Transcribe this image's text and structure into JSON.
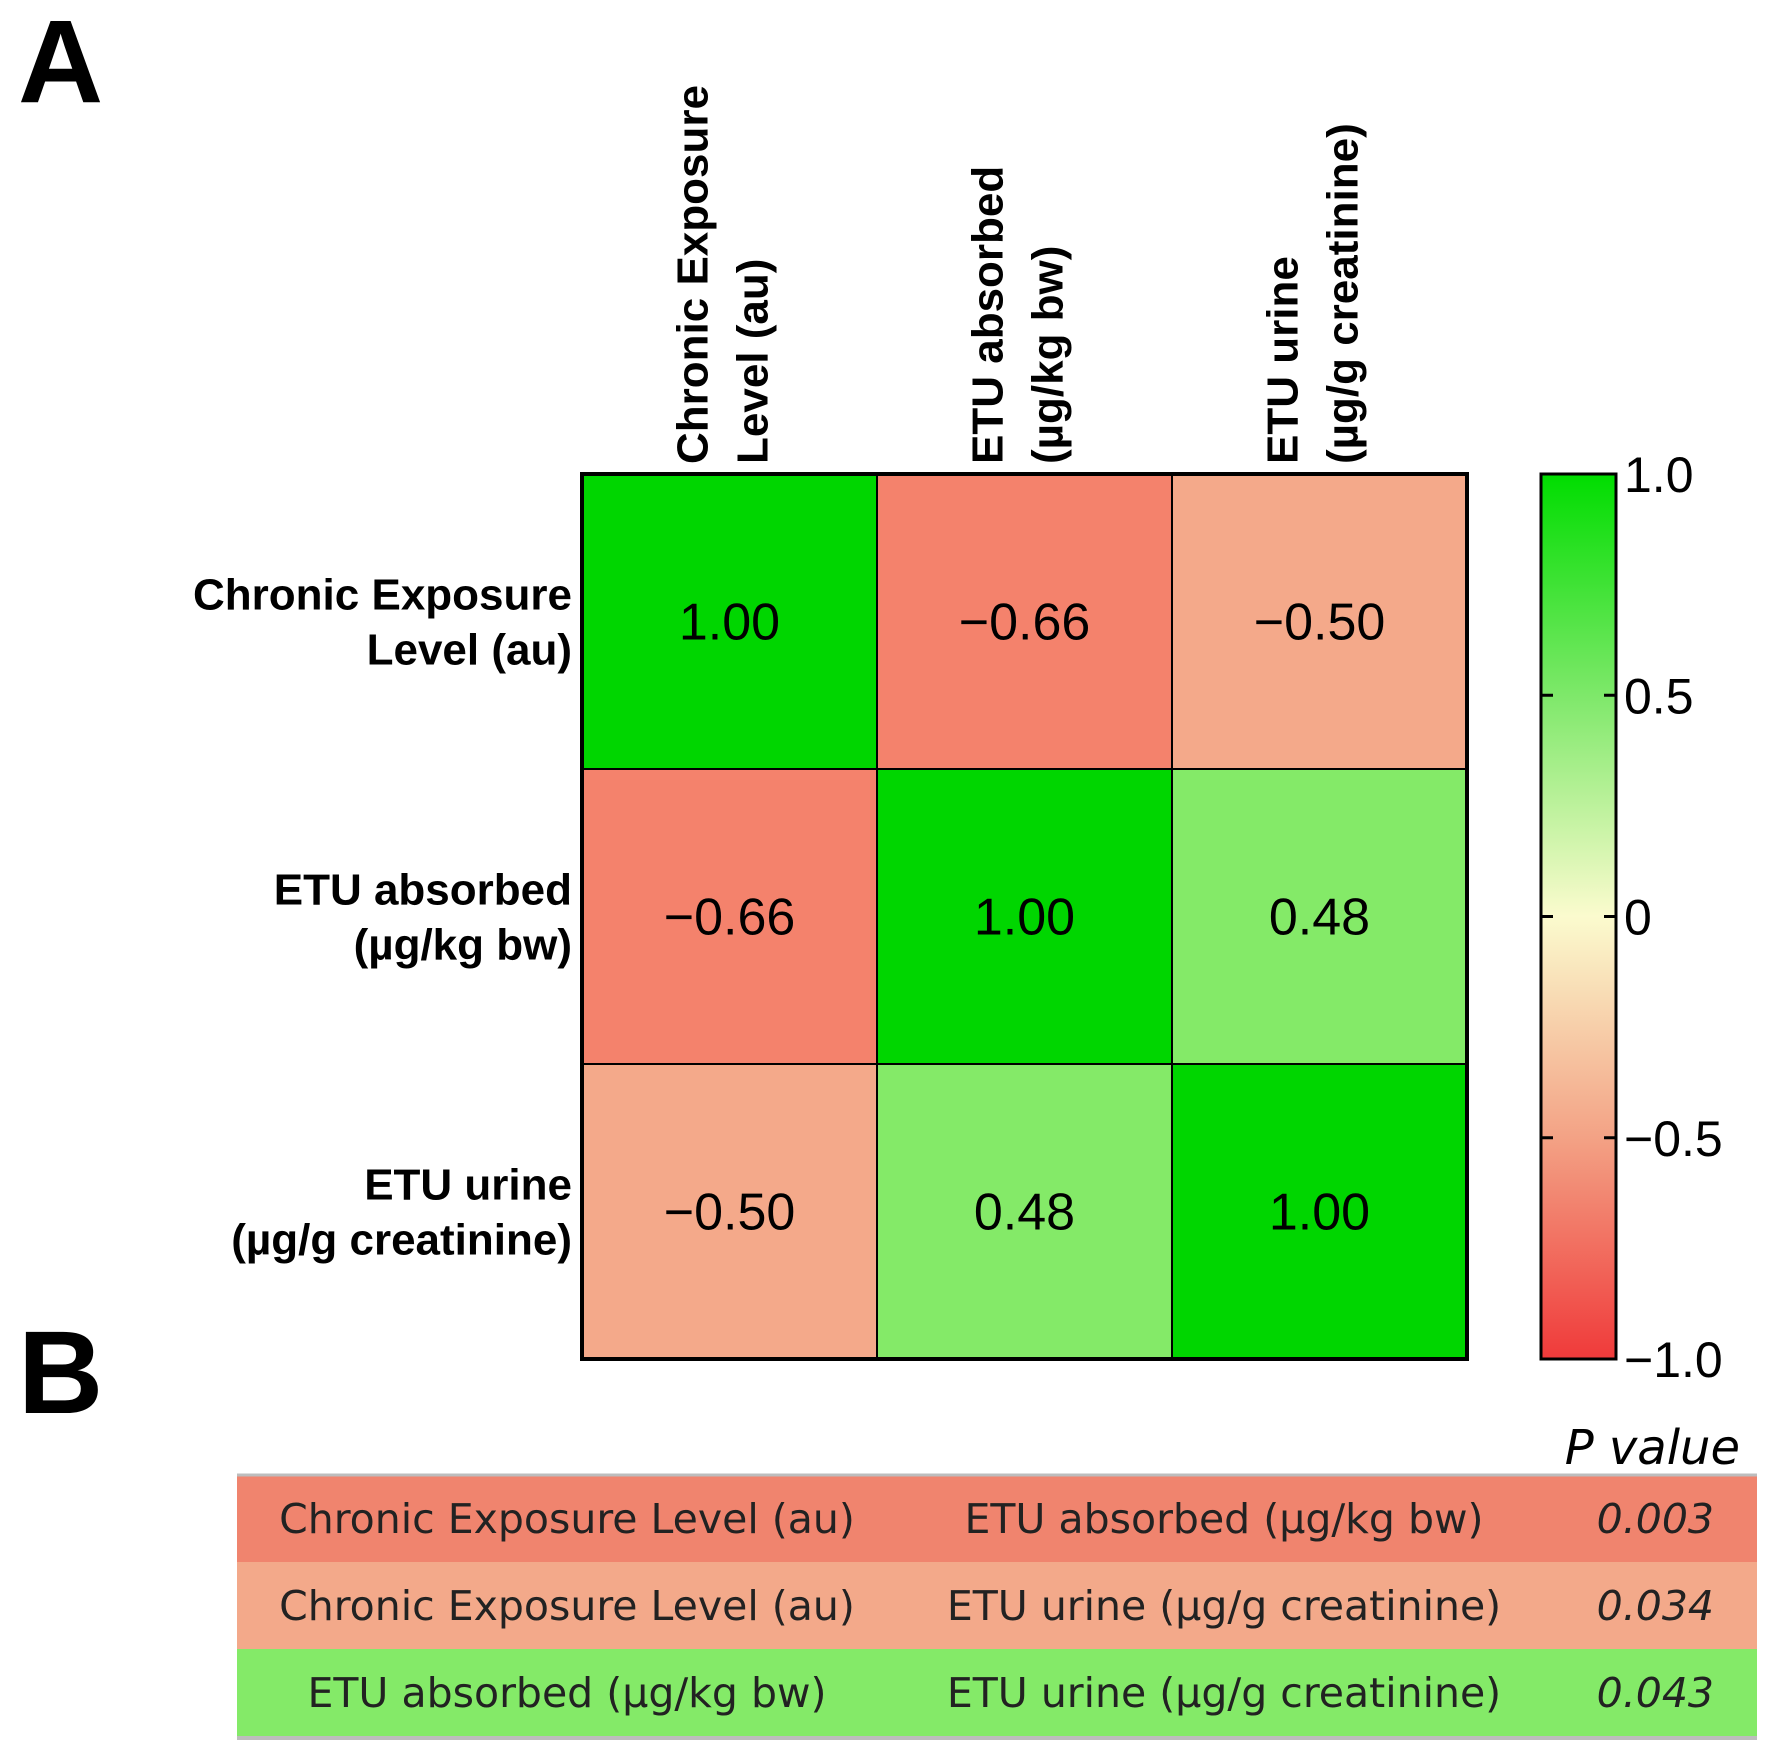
{
  "panels": {
    "a_label": "A",
    "b_label": "B"
  },
  "chart_data": {
    "type": "heatmap",
    "title": "",
    "row_labels": [
      [
        "Chronic Exposure",
        "Level (au)"
      ],
      [
        "ETU absorbed",
        "(µg/kg bw)"
      ],
      [
        "ETU urine",
        "(µg/g creatinine)"
      ]
    ],
    "column_labels": [
      [
        "Chronic Exposure",
        "Level (au)"
      ],
      [
        "ETU absorbed",
        "(µg/kg bw)"
      ],
      [
        "ETU urine",
        "(µg/g creatinine)"
      ]
    ],
    "values": [
      [
        1.0,
        -0.66,
        -0.5
      ],
      [
        -0.66,
        1.0,
        0.48
      ],
      [
        -0.5,
        0.48,
        1.0
      ]
    ],
    "value_labels": [
      [
        "1.00",
        "−0.66",
        "−0.50"
      ],
      [
        "−0.66",
        "1.00",
        "0.48"
      ],
      [
        "−0.50",
        "0.48",
        "1.00"
      ]
    ],
    "colorbar": {
      "range": [
        -1.0,
        1.0
      ],
      "ticks": [
        1.0,
        0.5,
        0,
        -0.5,
        -1.0
      ],
      "tick_labels": [
        "1.0",
        "0.5",
        "0",
        "−0.5",
        "−1.0"
      ],
      "colors": {
        "negative": "#f03a3a",
        "neutral": "#fbfbce",
        "positive": "#00dd00"
      }
    },
    "cell_colors": {
      "1.00": "#00d600",
      "-0.66": "#f4826c",
      "-0.50": "#f4a98a",
      "0.48": "#84ea68"
    }
  },
  "pvalue_table": {
    "header": "P value",
    "rows": [
      {
        "var1": "Chronic Exposure Level  (au)",
        "var2": "ETU absorbed (µg/kg bw)",
        "p": "0.003",
        "color": "#f0846e"
      },
      {
        "var1": "Chronic Exposure Level  (au)",
        "var2": "ETU urine (µg/g creatinine)",
        "p": "0.034",
        "color": "#f3a98a"
      },
      {
        "var1": "ETU absorbed (µg/kg bw)",
        "var2": "ETU urine (µg/g creatinine)",
        "p": "0.043",
        "color": "#84ea68"
      }
    ]
  }
}
